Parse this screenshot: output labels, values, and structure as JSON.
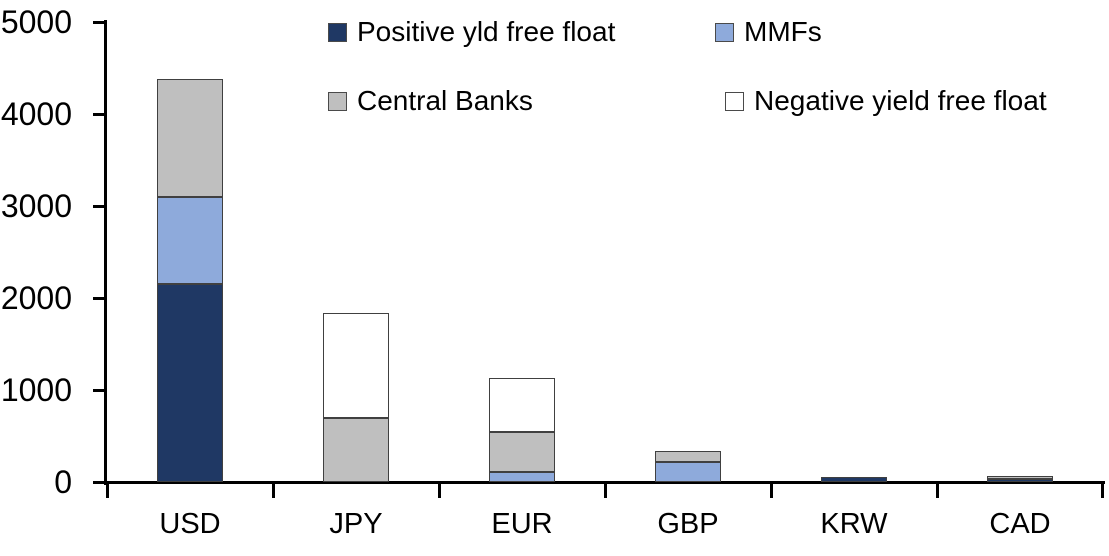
{
  "chart_data": {
    "type": "bar",
    "stacked": true,
    "title": "",
    "xlabel": "",
    "ylabel": "",
    "categories": [
      "USD",
      "JPY",
      "EUR",
      "GBP",
      "KRW",
      "CAD"
    ],
    "series": [
      {
        "name": "Positive yld free float",
        "color": "#1F3864",
        "values": [
          2150,
          0,
          0,
          0,
          50,
          30
        ]
      },
      {
        "name": "MMFs",
        "color": "#8EAADB",
        "values": [
          950,
          0,
          110,
          220,
          0,
          0
        ]
      },
      {
        "name": "Central Banks",
        "color": "#BFBFBF",
        "values": [
          1280,
          700,
          430,
          115,
          0,
          35
        ]
      },
      {
        "name": "Negative yield free float",
        "color": "#FFFFFF",
        "values": [
          0,
          1140,
          590,
          0,
          0,
          0
        ]
      }
    ],
    "ylim": [
      0,
      5000
    ],
    "yticks": [
      "0",
      "1000",
      "2000",
      "3000",
      "4000",
      "5000"
    ],
    "grid": false,
    "legend_position": "top",
    "bar_border_color": "#404040",
    "axis_color": "#000000",
    "text_color": "#000000",
    "background": "#FFFFFF"
  }
}
